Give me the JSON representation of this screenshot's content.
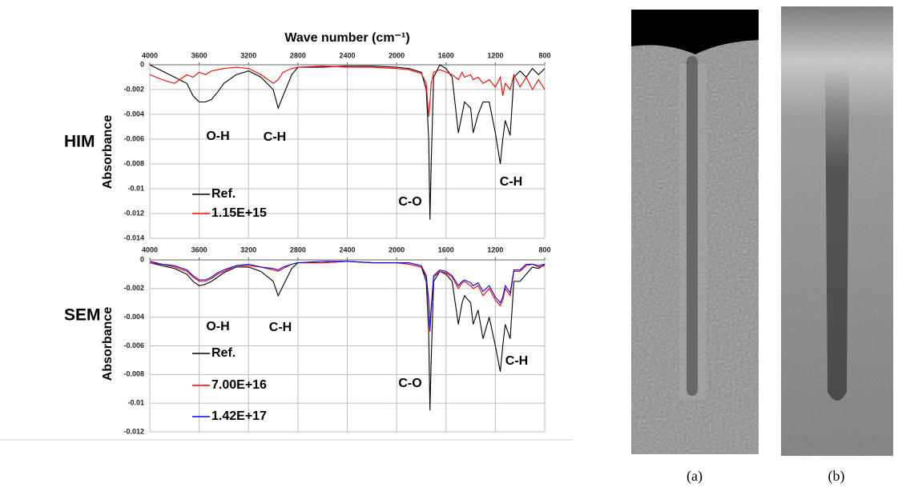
{
  "chart_data": [
    {
      "type": "line",
      "label": "HIM",
      "xlabel": "Wave number (cm⁻¹)",
      "ylabel": "Absorbance",
      "x": [
        4000,
        3900,
        3800,
        3700,
        3650,
        3600,
        3550,
        3500,
        3450,
        3400,
        3300,
        3200,
        3100,
        3000,
        2960,
        2920,
        2850,
        2800,
        2600,
        2400,
        2200,
        2000,
        1900,
        1800,
        1760,
        1740,
        1730,
        1720,
        1700,
        1650,
        1600,
        1550,
        1500,
        1470,
        1450,
        1400,
        1380,
        1340,
        1300,
        1250,
        1200,
        1160,
        1140,
        1120,
        1080,
        1050,
        1000,
        950,
        900,
        850,
        800
      ],
      "series": [
        {
          "name": "Ref.",
          "color": "#000000",
          "values": [
            0,
            -0.0005,
            -0.001,
            -0.0015,
            -0.0025,
            -0.003,
            -0.003,
            -0.0028,
            -0.0022,
            -0.0015,
            -0.0008,
            -0.0005,
            -0.001,
            -0.002,
            -0.0035,
            -0.0025,
            -0.0008,
            -0.0002,
            -0.0002,
            -0.0001,
            -0.0001,
            -0.0002,
            -0.0003,
            -0.0006,
            -0.002,
            -0.006,
            -0.0125,
            -0.008,
            -0.001,
            0,
            -0.0003,
            -0.001,
            -0.0055,
            -0.004,
            -0.003,
            -0.0035,
            -0.0055,
            -0.004,
            -0.003,
            -0.003,
            -0.0055,
            -0.008,
            -0.006,
            -0.0045,
            -0.0057,
            -0.001,
            -0.0005,
            -0.001,
            -0.0003,
            -0.0008,
            -0.0003
          ]
        },
        {
          "name": "1.15E+15",
          "color": "#ff0000",
          "values": [
            -0.0008,
            -0.0012,
            -0.0015,
            -0.0008,
            -0.001,
            -0.0006,
            -0.0008,
            -0.0005,
            -0.0004,
            -0.0003,
            -0.0002,
            -0.0003,
            -0.0008,
            -0.0015,
            -0.0012,
            -0.0006,
            -0.0003,
            -0.0002,
            -0.0001,
            -0.0002,
            -0.0002,
            -0.0003,
            -0.0004,
            -0.0007,
            -0.0015,
            -0.0042,
            -0.003,
            -0.0015,
            -0.0006,
            -0.0004,
            -0.0006,
            -0.0008,
            -0.0012,
            -0.0006,
            -0.001,
            -0.0008,
            -0.0012,
            -0.001,
            -0.0015,
            -0.0012,
            -0.0018,
            -0.001,
            -0.0025,
            -0.0015,
            -0.002,
            -0.0008,
            -0.0018,
            -0.001,
            -0.002,
            -0.0012,
            -0.002
          ]
        }
      ],
      "xlim": [
        4000,
        800
      ],
      "xticks": [
        4000,
        3600,
        3200,
        2800,
        2400,
        2000,
        1600,
        1200,
        800
      ],
      "ylim": [
        -0.014,
        0
      ],
      "yticks": [
        0,
        -0.002,
        -0.004,
        -0.006,
        -0.008,
        -0.01,
        -0.012,
        -0.014
      ],
      "grid": true,
      "legend": "lower left",
      "annotations": [
        "O-H",
        "C-H",
        "C-O",
        "C-H"
      ]
    },
    {
      "type": "line",
      "label": "SEM",
      "ylabel": "Absorbance",
      "x": [
        4000,
        3900,
        3800,
        3700,
        3650,
        3600,
        3550,
        3500,
        3450,
        3400,
        3300,
        3200,
        3100,
        3000,
        2960,
        2920,
        2850,
        2800,
        2600,
        2400,
        2200,
        2000,
        1900,
        1800,
        1760,
        1740,
        1730,
        1720,
        1700,
        1650,
        1600,
        1550,
        1500,
        1470,
        1450,
        1400,
        1380,
        1340,
        1300,
        1250,
        1200,
        1160,
        1140,
        1120,
        1080,
        1050,
        1000,
        950,
        900,
        850,
        800
      ],
      "series": [
        {
          "name": "Ref.",
          "color": "#000000",
          "values": [
            -0.0002,
            -0.0004,
            -0.0006,
            -0.001,
            -0.0015,
            -0.0018,
            -0.0017,
            -0.0015,
            -0.0012,
            -0.0009,
            -0.0005,
            -0.0005,
            -0.0008,
            -0.0015,
            -0.0025,
            -0.0018,
            -0.0006,
            -0.0002,
            -0.0002,
            -0.0001,
            -0.0002,
            -0.0002,
            -0.0003,
            -0.0005,
            -0.0015,
            -0.005,
            -0.0105,
            -0.007,
            -0.0015,
            -0.0008,
            -0.001,
            -0.0015,
            -0.0045,
            -0.003,
            -0.0025,
            -0.003,
            -0.0045,
            -0.0035,
            -0.0055,
            -0.004,
            -0.006,
            -0.0078,
            -0.006,
            -0.0045,
            -0.0055,
            -0.0015,
            -0.0015,
            -0.001,
            -0.0005,
            -0.0006,
            -0.0003
          ]
        },
        {
          "name": "7.00E+16",
          "color": "#ff0000",
          "values": [
            -0.0002,
            -0.0003,
            -0.0005,
            -0.0008,
            -0.0012,
            -0.0015,
            -0.0015,
            -0.0013,
            -0.001,
            -0.0008,
            -0.0004,
            -0.0004,
            -0.0005,
            -0.0007,
            -0.0008,
            -0.0006,
            -0.0003,
            -0.0002,
            -0.0002,
            -0.0001,
            -0.0002,
            -0.0002,
            -0.0003,
            -0.0005,
            -0.0012,
            -0.003,
            -0.005,
            -0.0035,
            -0.0012,
            -0.0008,
            -0.0009,
            -0.0012,
            -0.002,
            -0.0016,
            -0.0015,
            -0.0018,
            -0.002,
            -0.0018,
            -0.0025,
            -0.002,
            -0.0028,
            -0.0032,
            -0.0028,
            -0.002,
            -0.0025,
            -0.0008,
            -0.0008,
            -0.0004,
            -0.0003,
            -0.0005,
            -0.0004
          ]
        },
        {
          "name": "1.42E+17",
          "color": "#0000ff",
          "values": [
            -0.0001,
            -0.0003,
            -0.0004,
            -0.0007,
            -0.0011,
            -0.0014,
            -0.0014,
            -0.0012,
            -0.0009,
            -0.0007,
            -0.0004,
            -0.0003,
            -0.0005,
            -0.0006,
            -0.0007,
            -0.0005,
            -0.0003,
            -0.0002,
            -0.0001,
            -0.0001,
            -0.0002,
            -0.0002,
            -0.0002,
            -0.0004,
            -0.0011,
            -0.0028,
            -0.0048,
            -0.0033,
            -0.0011,
            -0.0007,
            -0.0008,
            -0.0011,
            -0.0018,
            -0.0015,
            -0.0014,
            -0.0016,
            -0.0018,
            -0.0016,
            -0.0022,
            -0.0018,
            -0.0026,
            -0.003,
            -0.0026,
            -0.0018,
            -0.0023,
            -0.0007,
            -0.0007,
            -0.0003,
            -0.0003,
            -0.0004,
            -0.0003
          ]
        }
      ],
      "xlim": [
        4000,
        800
      ],
      "xticks": [
        4000,
        3600,
        3200,
        2800,
        2400,
        2000,
        1600,
        1200,
        800
      ],
      "ylim": [
        -0.012,
        0
      ],
      "yticks": [
        0,
        -0.002,
        -0.004,
        -0.006,
        -0.008,
        -0.01,
        -0.012
      ],
      "grid": true,
      "legend": "lower left",
      "annotations": [
        "O-H",
        "C-H",
        "C-O",
        "C-H"
      ]
    }
  ],
  "images": [
    {
      "caption": "(a)"
    },
    {
      "caption": "(b)"
    }
  ]
}
